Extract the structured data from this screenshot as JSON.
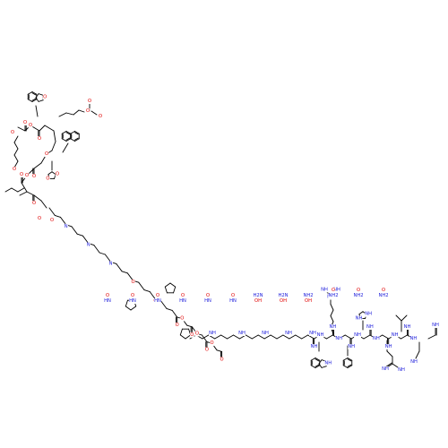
{
  "diagram": {
    "type": "chemical-structure",
    "background": "#ffffff",
    "bond_color": "#000000",
    "atom_colors": {
      "O": "#e00000",
      "N": "#1a1adb",
      "H": "#1a1adb"
    },
    "atom_labels": [
      "NH",
      "NH",
      "NH",
      "NH",
      "NH",
      "NH",
      "NH",
      "NH",
      "NH",
      "NH",
      "NH",
      "NH",
      "NH",
      "NH",
      "NH",
      "NH",
      "NH",
      "NH",
      "NH",
      "NH",
      "NH",
      "NH",
      "NH",
      "NH",
      "NH",
      "NH",
      "NH",
      "N",
      "N",
      "N",
      "O",
      "O",
      "O",
      "O",
      "O",
      "O",
      "O",
      "O",
      "O",
      "O",
      "O",
      "O",
      "O",
      "O",
      "O",
      "O",
      "O",
      "O",
      "O",
      "O",
      "O",
      "O",
      "O",
      "O",
      "O",
      "O",
      "O",
      "O",
      "O",
      "O",
      "O",
      "O",
      "O",
      "O",
      "O",
      "O",
      "H2N",
      "H2N",
      "NH2",
      "NH2",
      "NH2",
      "NH2",
      "HN",
      "HN",
      "HN",
      "HN",
      "HN",
      "HN",
      "OH",
      "OH",
      "OH"
    ]
  }
}
